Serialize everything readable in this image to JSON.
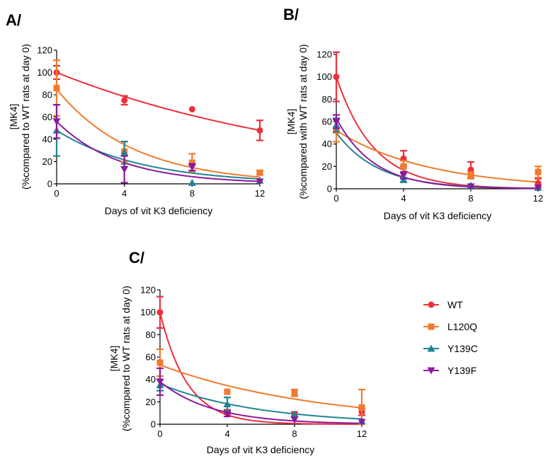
{
  "series_styles": [
    {
      "name": "WT",
      "color": "#ee2f3b",
      "marker": "circle"
    },
    {
      "name": "L120Q",
      "color": "#f07b2c",
      "marker": "square"
    },
    {
      "name": "Y139C",
      "color": "#1f8496",
      "marker": "triangle-up"
    },
    {
      "name": "Y139F",
      "color": "#8b1a9c",
      "marker": "triangle-down"
    }
  ],
  "legend": [
    "WT",
    "L120Q",
    "Y139C",
    "Y139F"
  ],
  "chart_data": [
    {
      "id": "A",
      "panel_label": "A/",
      "type": "scatter",
      "xlabel": "Days of vit K3 deficiency",
      "ylabel_line1": "[MK4]",
      "ylabel_line2": "(%compared to WT rats at day 0)",
      "xlim": [
        0,
        12
      ],
      "ylim": [
        0,
        120
      ],
      "xticks": [
        0,
        4,
        8,
        12
      ],
      "yticks": [
        0,
        20,
        40,
        60,
        80,
        100,
        120
      ],
      "series": [
        {
          "name": "WT",
          "points": [
            {
              "x": 0,
              "y": 100,
              "err": 6
            },
            {
              "x": 4,
              "y": 75,
              "err": 4
            },
            {
              "x": 8,
              "y": 67,
              "err": 0
            },
            {
              "x": 12,
              "y": 48,
              "err": 9
            }
          ],
          "fit": {
            "y0": 100,
            "plateau": 0,
            "k": 0.061
          }
        },
        {
          "name": "L120Q",
          "points": [
            {
              "x": 0,
              "y": 86,
              "err": 25
            },
            {
              "x": 4,
              "y": 29,
              "err": 9
            },
            {
              "x": 8,
              "y": 19,
              "err": 8
            },
            {
              "x": 12,
              "y": 10,
              "err": 2
            }
          ],
          "fit": {
            "y0": 85,
            "plateau": 0,
            "k": 0.22
          }
        },
        {
          "name": "Y139C",
          "points": [
            {
              "x": 0,
              "y": 48,
              "err": 23
            },
            {
              "x": 4,
              "y": 28,
              "err": 10
            },
            {
              "x": 8,
              "y": 1,
              "err": 0
            },
            {
              "x": 12,
              "y": 3,
              "err": 0
            }
          ],
          "fit": {
            "y0": 48,
            "plateau": 0,
            "k": 0.2
          }
        },
        {
          "name": "Y139F",
          "points": [
            {
              "x": 0,
              "y": 56,
              "err": 15
            },
            {
              "x": 4,
              "y": 13,
              "err": 12
            },
            {
              "x": 8,
              "y": 15,
              "err": 3
            },
            {
              "x": 12,
              "y": 2,
              "err": 0
            }
          ],
          "fit": {
            "y0": 56,
            "plateau": 0,
            "k": 0.27
          }
        }
      ]
    },
    {
      "id": "B",
      "panel_label": "B/",
      "type": "scatter",
      "xlabel": "Days of vit K3 deficiency",
      "ylabel_line1": "[MK4]",
      "ylabel_line2": "(%compared with WT rats at day 0)",
      "xlim": [
        0,
        12
      ],
      "ylim": [
        0,
        120
      ],
      "xticks": [
        0,
        4,
        8,
        12
      ],
      "yticks": [
        0,
        20,
        40,
        60,
        80,
        100,
        120
      ],
      "series": [
        {
          "name": "WT",
          "points": [
            {
              "x": 0,
              "y": 100,
              "err": 22
            },
            {
              "x": 4,
              "y": 27,
              "err": 7
            },
            {
              "x": 8,
              "y": 17,
              "err": 7
            },
            {
              "x": 12,
              "y": 5,
              "err": 4
            }
          ],
          "fit": {
            "y0": 100,
            "plateau": 0,
            "k": 0.45
          }
        },
        {
          "name": "L120Q",
          "points": [
            {
              "x": 0,
              "y": 52,
              "err": 10
            },
            {
              "x": 4,
              "y": 20,
              "err": 5
            },
            {
              "x": 8,
              "y": 12,
              "err": 3
            },
            {
              "x": 12,
              "y": 15,
              "err": 5
            }
          ],
          "fit": {
            "y0": 52,
            "plateau": 0,
            "k": 0.18
          }
        },
        {
          "name": "Y139C",
          "points": [
            {
              "x": 0,
              "y": 57,
              "err": 6
            },
            {
              "x": 4,
              "y": 8,
              "err": 2
            },
            {
              "x": 8,
              "y": 3,
              "err": 0
            },
            {
              "x": 12,
              "y": 1,
              "err": 0
            }
          ],
          "fit": {
            "y0": 50,
            "plateau": 0,
            "k": 0.4
          }
        },
        {
          "name": "Y139F",
          "points": [
            {
              "x": 0,
              "y": 60,
              "err": 6
            },
            {
              "x": 4,
              "y": 12,
              "err": 3
            },
            {
              "x": 8,
              "y": 2,
              "err": 0
            },
            {
              "x": 12,
              "y": 1,
              "err": 0
            }
          ],
          "fit": {
            "y0": 63,
            "plateau": 0,
            "k": 0.45
          }
        }
      ]
    },
    {
      "id": "C",
      "panel_label": "C/",
      "type": "scatter",
      "xlabel": "Days of vit K3 deficiency",
      "ylabel_line1": "[MK4]",
      "ylabel_line2": "(%compared to WT rats at day 0)",
      "xlim": [
        0,
        12
      ],
      "ylim": [
        0,
        120
      ],
      "xticks": [
        0,
        4,
        8,
        12
      ],
      "yticks": [
        0,
        20,
        40,
        60,
        80,
        100,
        120
      ],
      "series": [
        {
          "name": "WT",
          "points": [
            {
              "x": 0,
              "y": 100,
              "err": 14
            },
            {
              "x": 4,
              "y": 11,
              "err": 2
            },
            {
              "x": 8,
              "y": 9,
              "err": 2
            },
            {
              "x": 12,
              "y": 11,
              "err": 3
            }
          ],
          "fit": {
            "y0": 100,
            "plateau": 0,
            "k": 0.62
          }
        },
        {
          "name": "L120Q",
          "points": [
            {
              "x": 0,
              "y": 55,
              "err": 12
            },
            {
              "x": 4,
              "y": 29,
              "err": 0
            },
            {
              "x": 8,
              "y": 28,
              "err": 3
            },
            {
              "x": 12,
              "y": 15,
              "err": 16
            }
          ],
          "fit": {
            "y0": 53,
            "plateau": 0,
            "k": 0.107
          }
        },
        {
          "name": "Y139C",
          "points": [
            {
              "x": 0,
              "y": 35,
              "err": 5
            },
            {
              "x": 4,
              "y": 18,
              "err": 6
            },
            {
              "x": 8,
              "y": 9,
              "err": 0
            },
            {
              "x": 12,
              "y": 3,
              "err": 0
            }
          ],
          "fit": {
            "y0": 36,
            "plateau": 0,
            "k": 0.17
          }
        },
        {
          "name": "Y139F",
          "points": [
            {
              "x": 0,
              "y": 38,
              "err": 12
            },
            {
              "x": 4,
              "y": 9,
              "err": 2
            },
            {
              "x": 8,
              "y": 4,
              "err": 0
            },
            {
              "x": 12,
              "y": 2,
              "err": 0
            }
          ],
          "fit": {
            "y0": 38,
            "plateau": 0,
            "k": 0.32
          }
        }
      ]
    }
  ]
}
